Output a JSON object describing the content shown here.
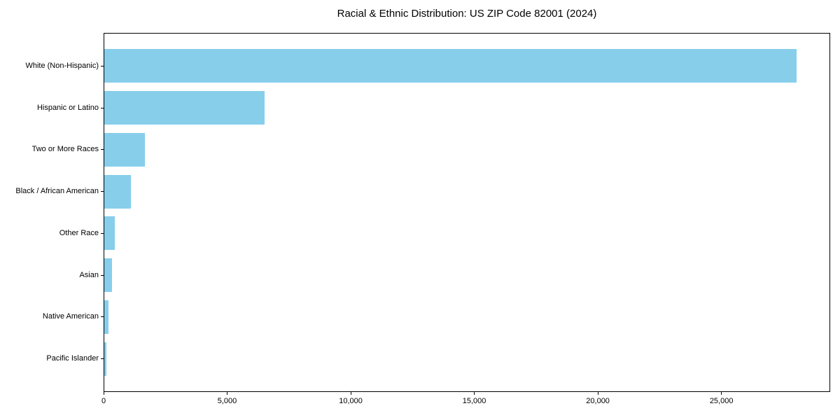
{
  "figure": {
    "kind": "static-matplotlib-style-figure"
  },
  "chart_data": {
    "type": "bar",
    "orientation": "horizontal",
    "title": "Racial & Ethnic Distribution: US ZIP Code 82001 (2024)",
    "categories": [
      "White (Non-Hispanic)",
      "Hispanic or Latino",
      "Two or More Races",
      "Black / African American",
      "Other Race",
      "Asian",
      "Native American",
      "Pacific Islander"
    ],
    "values": [
      28000,
      6500,
      1650,
      1080,
      420,
      300,
      175,
      85
    ],
    "xlabel": "",
    "ylabel": "",
    "xlim": [
      0,
      29400
    ],
    "xticks": [
      0,
      5000,
      10000,
      15000,
      20000,
      25000
    ],
    "xtick_labels": [
      "0",
      "5,000",
      "10,000",
      "15,000",
      "20,000",
      "25,000"
    ],
    "grid": false,
    "legend": "none",
    "bar_color": "#87CEEB",
    "axis_color": "#000000",
    "background_color": "#FFFFFF"
  }
}
